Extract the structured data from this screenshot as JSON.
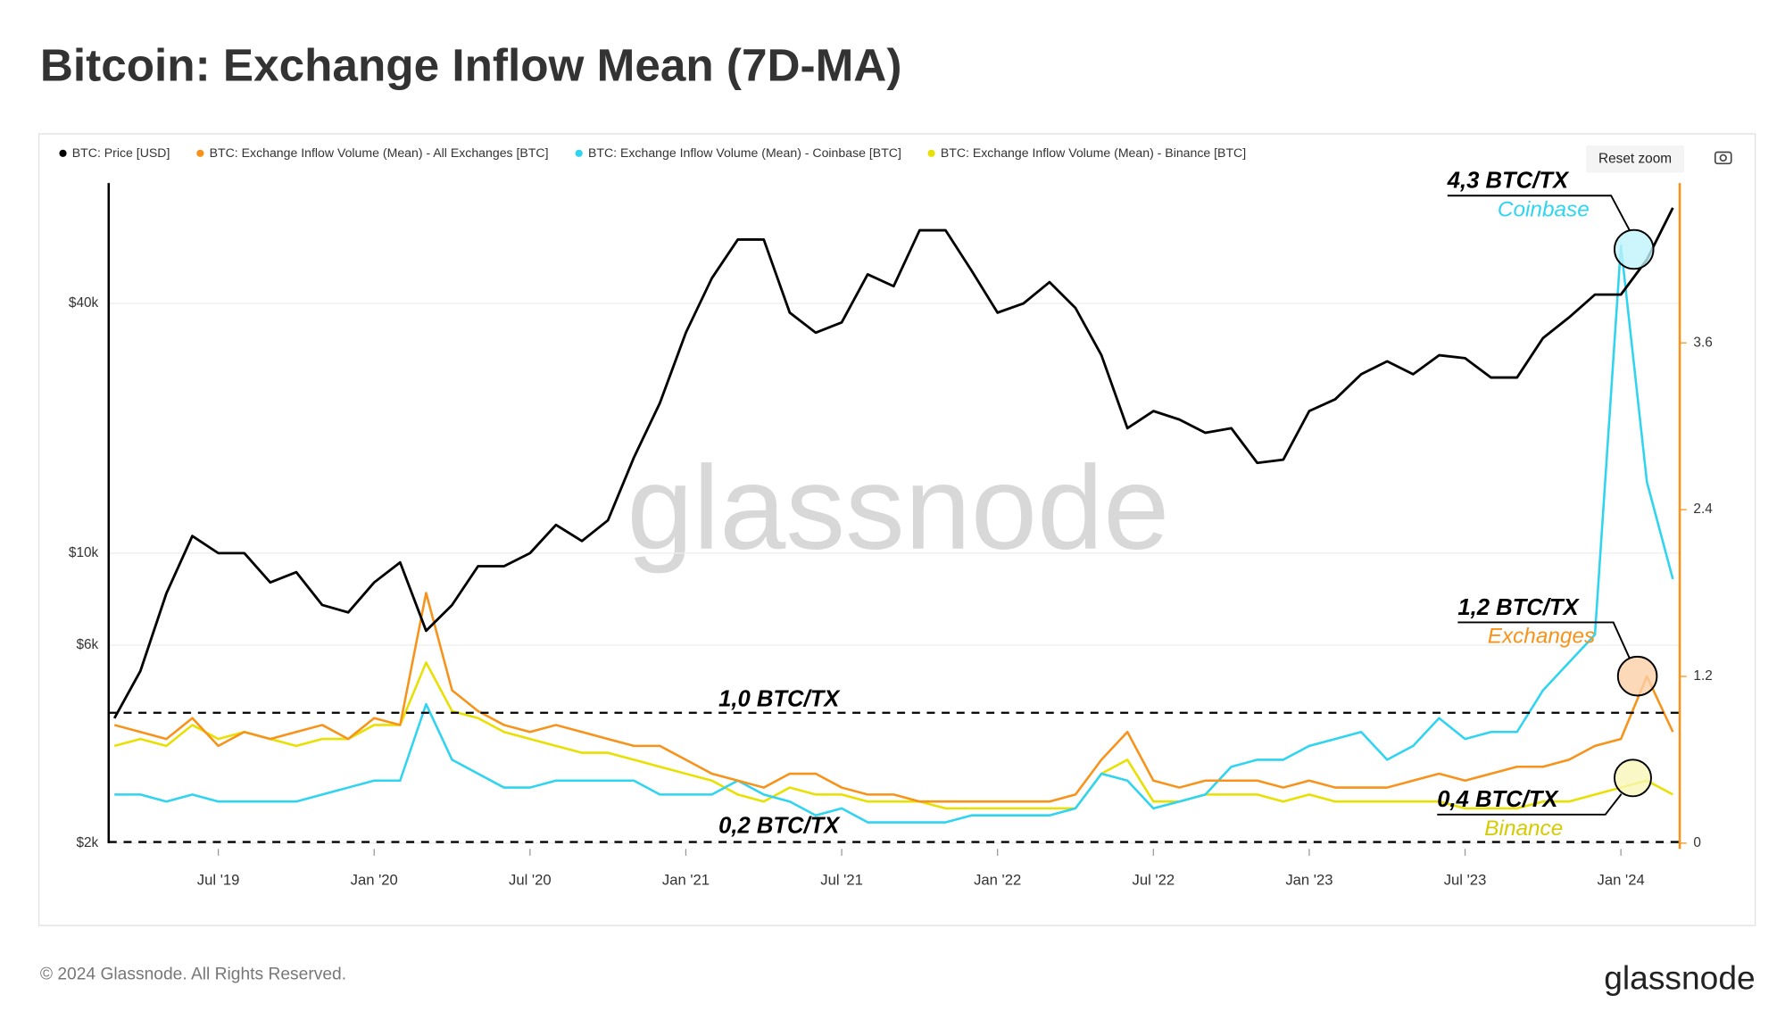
{
  "chart_data": {
    "type": "line",
    "title": "Bitcoin: Exchange Inflow Mean (7D-MA)",
    "reset_zoom": "Reset zoom",
    "watermark": "glassnode",
    "footer": {
      "copyright": "© 2024 Glassnode. All Rights Reserved.",
      "logo": "glassnode"
    },
    "x": [
      null,
      null,
      null,
      null,
      "Jul '19",
      null,
      null,
      null,
      null,
      null,
      "Jan '20",
      null,
      null,
      null,
      null,
      null,
      "Jul '20",
      null,
      null,
      null,
      null,
      null,
      "Jan '21",
      null,
      null,
      null,
      null,
      null,
      "Jul '21",
      null,
      null,
      null,
      null,
      null,
      "Jan '22",
      null,
      null,
      null,
      null,
      null,
      "Jul '22",
      null,
      null,
      null,
      null,
      null,
      "Jan '23",
      null,
      null,
      null,
      null,
      null,
      "Jul '23",
      null,
      null,
      null,
      null,
      null,
      "Jan '24",
      null,
      null
    ],
    "yscale": "log",
    "ylim": [
      2000,
      78000
    ],
    "yticks": [
      {
        "value": 2000,
        "label": "$2k"
      },
      {
        "value": 6000,
        "label": "$6k"
      },
      {
        "value": 10000,
        "label": "$10k"
      },
      {
        "value": 40000,
        "label": "$40k"
      }
    ],
    "y2lim": [
      0,
      4.75
    ],
    "y2ticks": [
      0,
      1.2,
      2.4,
      3.6
    ],
    "grid": true,
    "legend": "top-left",
    "series": [
      {
        "name": "BTC: Price [USD]",
        "color": "#000000",
        "axis": "y",
        "values": [
          4000,
          5200,
          8000,
          11000,
          10000,
          10000,
          8500,
          9000,
          7500,
          7200,
          8500,
          9500,
          6500,
          7500,
          9300,
          9300,
          10000,
          11700,
          10700,
          12000,
          17000,
          23000,
          34000,
          46000,
          57000,
          57000,
          38000,
          34000,
          36000,
          47000,
          44000,
          60000,
          60000,
          48000,
          38000,
          40000,
          45000,
          39000,
          30000,
          20000,
          22000,
          21000,
          19500,
          20000,
          16500,
          16800,
          22000,
          23500,
          27000,
          29000,
          27000,
          30000,
          29500,
          26500,
          26500,
          33000,
          37000,
          42000,
          42000,
          51000,
          68000
        ]
      },
      {
        "name": "BTC: Exchange Inflow Volume (Mean) - All Exchanges [BTC]",
        "color": "#f7931a",
        "axis": "y2",
        "values": [
          0.85,
          0.8,
          0.75,
          0.9,
          0.7,
          0.8,
          0.75,
          0.8,
          0.85,
          0.75,
          0.9,
          0.85,
          1.8,
          1.1,
          0.95,
          0.85,
          0.8,
          0.85,
          0.8,
          0.75,
          0.7,
          0.7,
          0.6,
          0.5,
          0.45,
          0.4,
          0.5,
          0.5,
          0.4,
          0.35,
          0.35,
          0.3,
          0.3,
          0.3,
          0.3,
          0.3,
          0.3,
          0.35,
          0.6,
          0.8,
          0.45,
          0.4,
          0.45,
          0.45,
          0.45,
          0.4,
          0.45,
          0.4,
          0.4,
          0.4,
          0.45,
          0.5,
          0.45,
          0.5,
          0.55,
          0.55,
          0.6,
          0.7,
          0.75,
          1.2,
          0.8
        ]
      },
      {
        "name": "BTC: Exchange Inflow Volume (Mean) - Coinbase [BTC]",
        "color": "#2fd4f0",
        "axis": "y2",
        "values": [
          0.35,
          0.35,
          0.3,
          0.35,
          0.3,
          0.3,
          0.3,
          0.3,
          0.35,
          0.4,
          0.45,
          0.45,
          1.0,
          0.6,
          0.5,
          0.4,
          0.4,
          0.45,
          0.45,
          0.45,
          0.45,
          0.35,
          0.35,
          0.35,
          0.45,
          0.35,
          0.3,
          0.2,
          0.25,
          0.15,
          0.15,
          0.15,
          0.15,
          0.2,
          0.2,
          0.2,
          0.2,
          0.25,
          0.5,
          0.45,
          0.25,
          0.3,
          0.35,
          0.55,
          0.6,
          0.6,
          0.7,
          0.75,
          0.8,
          0.6,
          0.7,
          0.9,
          0.75,
          0.8,
          0.8,
          1.1,
          1.3,
          1.5,
          4.3,
          2.6,
          1.9
        ]
      },
      {
        "name": "BTC: Exchange Inflow Volume (Mean) - Binance [BTC]",
        "color": "#e8e000",
        "axis": "y2",
        "values": [
          0.7,
          0.75,
          0.7,
          0.85,
          0.75,
          0.8,
          0.75,
          0.7,
          0.75,
          0.75,
          0.85,
          0.85,
          1.3,
          0.95,
          0.9,
          0.8,
          0.75,
          0.7,
          0.65,
          0.65,
          0.6,
          0.55,
          0.5,
          0.45,
          0.35,
          0.3,
          0.4,
          0.35,
          0.35,
          0.3,
          0.3,
          0.3,
          0.25,
          0.25,
          0.25,
          0.25,
          0.25,
          0.25,
          0.5,
          0.6,
          0.3,
          0.3,
          0.35,
          0.35,
          0.35,
          0.3,
          0.35,
          0.3,
          0.3,
          0.3,
          0.3,
          0.3,
          0.25,
          0.25,
          0.25,
          0.3,
          0.3,
          0.35,
          0.4,
          0.45,
          0.35
        ]
      }
    ],
    "annotations": [
      {
        "text": "1,0 BTC/TX"
      },
      {
        "text": "0,2 BTC/TX"
      },
      {
        "text": "4,3 BTC/TX",
        "sub": "Coinbase"
      },
      {
        "text": "1,2 BTC/TX",
        "sub": "Exchanges"
      },
      {
        "text": "0,4 BTC/TX",
        "sub": "Binance"
      }
    ]
  }
}
